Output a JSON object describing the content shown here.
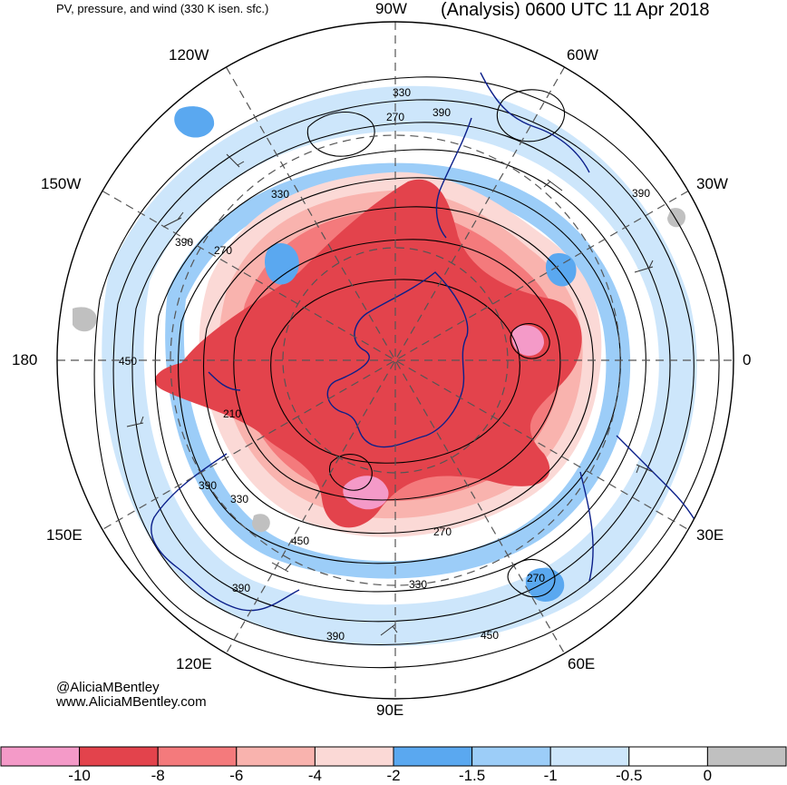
{
  "header": {
    "subtitle": "PV, pressure, and wind (330 K isen. sfc.)",
    "title": "(Analysis) 0600 UTC 11 Apr 2018"
  },
  "longitude_labels": [
    {
      "id": "lon-90w",
      "text": "90W"
    },
    {
      "id": "lon-60w",
      "text": "60W"
    },
    {
      "id": "lon-120w",
      "text": "120W"
    },
    {
      "id": "lon-150w",
      "text": "150W"
    },
    {
      "id": "lon-30w",
      "text": "30W"
    },
    {
      "id": "lon-180",
      "text": "180"
    },
    {
      "id": "lon-0",
      "text": "0"
    },
    {
      "id": "lon-150e",
      "text": "150E"
    },
    {
      "id": "lon-30e",
      "text": "30E"
    },
    {
      "id": "lon-120e",
      "text": "120E"
    },
    {
      "id": "lon-60e",
      "text": "60E"
    },
    {
      "id": "lon-90e",
      "text": "90E"
    }
  ],
  "contour_labels": [
    "330",
    "270",
    "390",
    "330",
    "390",
    "390",
    "270",
    "450",
    "210",
    "390",
    "330",
    "270",
    "450",
    "330",
    "270",
    "390",
    "390",
    "450"
  ],
  "credit": {
    "handle": "@AliciaMBentley",
    "site": "www.AliciaMBentley.com"
  },
  "colorbar": {
    "colors": [
      "#f49ac8",
      "#e3434c",
      "#f47a7c",
      "#f9b3ae",
      "#fbd9d6",
      "#5aa8f0",
      "#9ccdf8",
      "#cde6fb",
      "#ffffff",
      "#c0c0c0"
    ],
    "tick_labels": [
      "-10",
      "-8",
      "-6",
      "-4",
      "-2",
      "-1.5",
      "-1",
      "-0.5",
      "0"
    ]
  },
  "colors": {
    "coast": "#0b1f8a",
    "contour": "#000000",
    "grid": "#555555"
  }
}
